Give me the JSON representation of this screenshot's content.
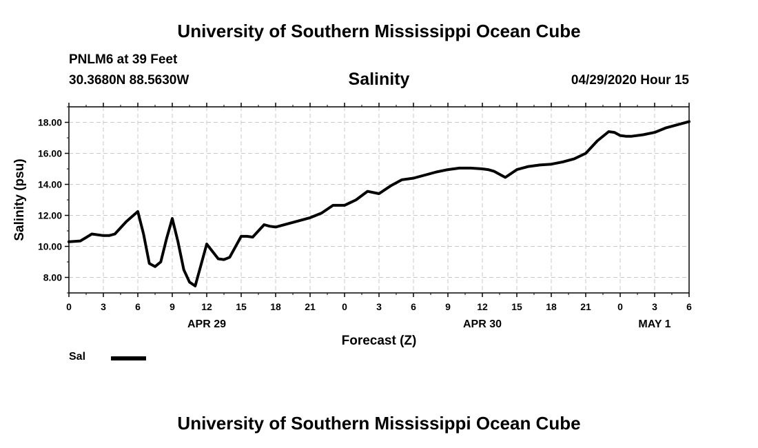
{
  "header": {
    "title": "University of Southern Mississippi Ocean Cube",
    "station": "PNLM6 at 39 Feet",
    "coords": "30.3680N 88.5630W",
    "chart_title": "Salinity",
    "datetime": "04/29/2020 Hour 15"
  },
  "footer": {
    "title": "University of Southern Mississippi Ocean Cube"
  },
  "legend": {
    "label": "Sal",
    "color": "#000000"
  },
  "chart_data": {
    "type": "line",
    "title": "Salinity",
    "xlabel": "Forecast (Z)",
    "ylabel": "Salinity (psu)",
    "xlim": [
      0,
      54
    ],
    "ylim": [
      7.0,
      19.0
    ],
    "x_ticks": [
      0,
      3,
      6,
      9,
      12,
      15,
      18,
      21,
      24,
      27,
      30,
      33,
      36,
      39,
      42,
      45,
      48,
      51,
      54
    ],
    "x_tick_labels": [
      "0",
      "3",
      "6",
      "9",
      "12",
      "15",
      "18",
      "21",
      "0",
      "3",
      "6",
      "9",
      "12",
      "15",
      "18",
      "21",
      "0",
      "3",
      "6"
    ],
    "y_ticks": [
      8,
      10,
      12,
      14,
      16,
      18
    ],
    "y_tick_labels": [
      "8.00",
      "10.00",
      "12.00",
      "14.00",
      "16.00",
      "18.00"
    ],
    "date_labels": [
      {
        "x": 12,
        "label": "APR 29"
      },
      {
        "x": 36,
        "label": "APR 30"
      },
      {
        "x": 51,
        "label": "MAY 1"
      }
    ],
    "grid": true,
    "series": [
      {
        "name": "Sal",
        "color": "#000000",
        "x": [
          0,
          1,
          2,
          3,
          3.5,
          4,
          5,
          6,
          6.5,
          7,
          7.5,
          8,
          8.5,
          9,
          9.5,
          10,
          10.5,
          11,
          12,
          13,
          13.5,
          14,
          15,
          15.5,
          16,
          17,
          17.5,
          18,
          19,
          20,
          21,
          22,
          23,
          24,
          25,
          26,
          27,
          28,
          29,
          30,
          31,
          32,
          33,
          34,
          35,
          36,
          36.5,
          37,
          38,
          39,
          40,
          41,
          42,
          43,
          44,
          45,
          46,
          47,
          47.5,
          48,
          48.5,
          49,
          50,
          51,
          52,
          53,
          54
        ],
        "values": [
          10.3,
          10.35,
          10.8,
          10.7,
          10.7,
          10.8,
          11.6,
          12.25,
          10.8,
          8.9,
          8.7,
          9.0,
          10.5,
          11.8,
          10.3,
          8.5,
          7.7,
          7.45,
          10.15,
          9.2,
          9.15,
          9.3,
          10.65,
          10.65,
          10.6,
          11.4,
          11.3,
          11.25,
          11.45,
          11.65,
          11.85,
          12.15,
          12.65,
          12.65,
          13.0,
          13.55,
          13.4,
          13.9,
          14.3,
          14.4,
          14.6,
          14.8,
          14.95,
          15.05,
          15.05,
          15.0,
          14.95,
          14.85,
          14.45,
          14.95,
          15.15,
          15.25,
          15.3,
          15.45,
          15.65,
          16.0,
          16.8,
          17.4,
          17.35,
          17.15,
          17.1,
          17.1,
          17.2,
          17.35,
          17.65,
          17.85,
          18.05
        ]
      }
    ]
  }
}
